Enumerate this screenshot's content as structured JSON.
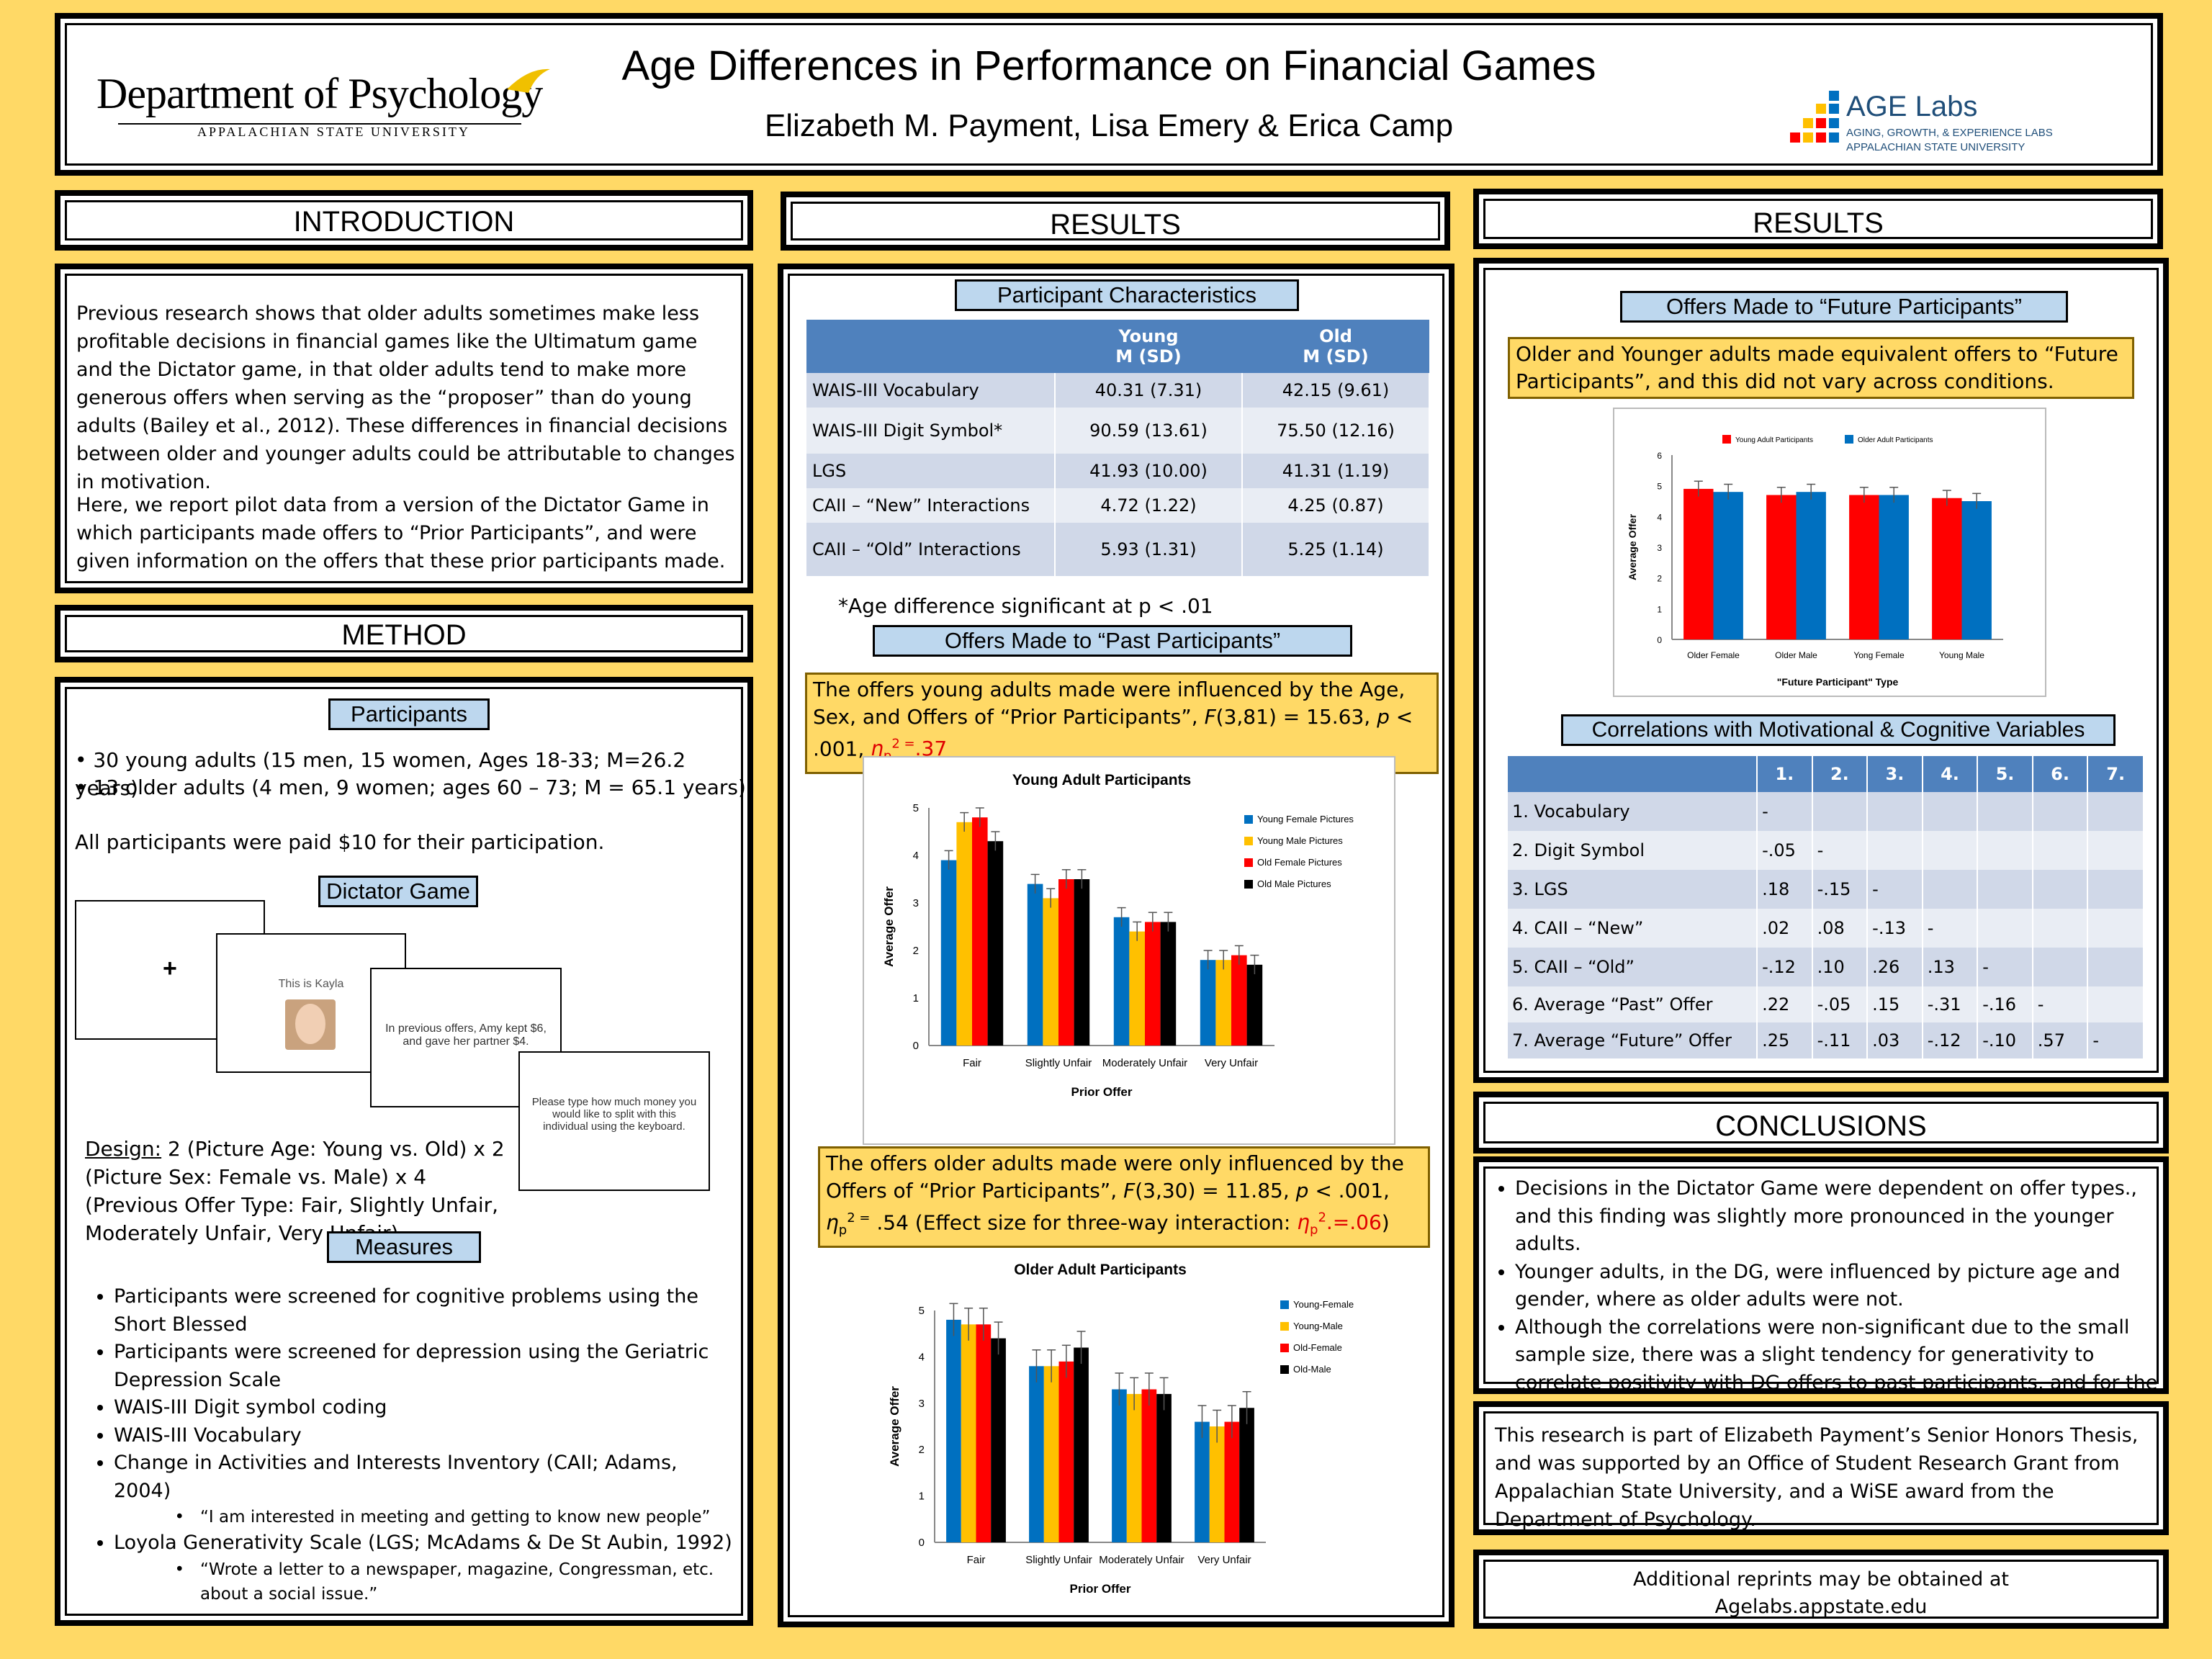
{
  "header": {
    "dept": "Department of Psychology",
    "univ": "APPALACHIAN STATE UNIVERSITY",
    "title": "Age Differences in Performance on Financial Games",
    "authors": "Elizabeth M. Payment, Lisa Emery & Erica Camp",
    "lab": "AGE Labs",
    "lab_sub1": "AGING, GROWTH, & EXPERIENCE LABS",
    "lab_sub2": "APPALACHIAN STATE UNIVERSITY"
  },
  "intro": {
    "heading": "INTRODUCTION",
    "p1": "Previous research shows that older adults sometimes make less profitable decisions in financial games like the Ultimatum game and the Dictator game, in that older adults tend to make more generous offers when serving as the “proposer” than do young adults (Bailey et al., 2012). These differences in financial decisions between older and younger adults could be attributable to changes in motivation.",
    "p2": "Here, we report pilot data from a version of the Dictator Game in which participants made offers to “Prior Participants”, and were given information on the offers that these prior participants made."
  },
  "method": {
    "heading": "METHOD",
    "participants_label": "Participants",
    "b1": "• 30 young adults (15 men, 15 women, Ages 18-33; M=26.2 years)",
    "b2": "• 13 older adults (4 men, 9 women; ages 60 – 73; M = 65.1 years)",
    "paid": "All participants were paid $10 for their participation.",
    "dg_label": "Dictator Game",
    "slide_plus": "+",
    "slide2": "This is Kayla",
    "slide3": "In previous offers, Amy kept $6, and gave her partner $4.",
    "slide4": "Please type how much money you would like to split with this individual using the keyboard.",
    "design_u": "Design:",
    "design": " 2 (Picture Age: Young vs. Old) x 2 (Picture Sex: Female vs. Male) x 4 (Previous Offer Type: Fair, Slightly Unfair, Moderately Unfair, Very Unfair)",
    "measures_label": "Measures",
    "m1": "Participants were screened for cognitive problems using the Short Blessed",
    "m2": "Participants were screened for depression using the Geriatric Depression Scale",
    "m3": "WAIS-III Digit symbol coding",
    "m4": "WAIS-III Vocabulary",
    "m5": "Change in Activities and Interests Inventory (CAII; Adams, 2004)",
    "m5a": "“I am interested in meeting and getting to know new people”",
    "m6": "Loyola Generativity Scale (LGS; McAdams & De St Aubin, 1992)",
    "m6a": "“Wrote a letter to a newspaper, magazine, Congressman, etc. about a social issue.”"
  },
  "results1": {
    "heading": "RESULTS",
    "pc_label": "Participant Characteristics",
    "cols": [
      "",
      "Young\nM (SD)",
      "Old\nM (SD)"
    ],
    "rows": [
      [
        "WAIS-III Vocabulary",
        "40.31 (7.31)",
        "42.15 (9.61)"
      ],
      [
        "WAIS-III Digit Symbol*",
        "90.59 (13.61)",
        "75.50 (12.16)"
      ],
      [
        "LGS",
        "41.93 (10.00)",
        "41.31 (1.19)"
      ],
      [
        "CAII – “New” Interactions",
        "4.72 (1.22)",
        "4.25 (0.87)"
      ],
      [
        "CAII – “Old” Interactions",
        "5.93 (1.31)",
        "5.25 (1.14)"
      ]
    ],
    "footnote": "*Age difference significant at p < .01",
    "past_label": "Offers Made to  “Past Participants”",
    "note1": "The offers young adults made were influenced by the Age, Sex, and Offers of “Prior Participants”, F(3,81) = 15.63, p < .001, ηp² = .37",
    "note2": "The offers older adults made were only influenced by the Offers of “Prior Participants”, F(3,30) = 11.85, p < .001, ηp² = .54 (Effect size for three-way interaction: ηp² = .06)"
  },
  "results2": {
    "heading": "RESULTS",
    "future_label": "Offers Made to  “Future Participants”",
    "note3": "Older and Younger adults made equivalent offers to “Future Participants”, and this did not vary across conditions.",
    "corr_label": "Correlations with Motivational & Cognitive Variables",
    "corr_cols": [
      "",
      "1.",
      "2.",
      "3.",
      "4.",
      "5.",
      "6.",
      "7."
    ],
    "corr_rows": [
      [
        "1.    Vocabulary",
        "-",
        "",
        "",
        "",
        "",
        "",
        ""
      ],
      [
        "2.    Digit Symbol",
        "-.05",
        "-",
        "",
        "",
        "",
        "",
        ""
      ],
      [
        "3.    LGS",
        ".18",
        "-.15",
        "-",
        "",
        "",
        "",
        ""
      ],
      [
        "4.    CAII – “New”",
        ".02",
        ".08",
        "-.13",
        "-",
        "",
        "",
        ""
      ],
      [
        "5.    CAII – “Old”",
        "-.12",
        ".10",
        ".26",
        ".13",
        "-",
        "",
        ""
      ],
      [
        "6.   Average  “Past” Offer",
        ".22",
        "-.05",
        ".15",
        "-.31",
        "-.16",
        "-",
        ""
      ],
      [
        "7.   Average “Future” Offer",
        ".25",
        "-.11",
        ".03",
        "-.12",
        "-.10",
        ".57",
        "-"
      ]
    ]
  },
  "conclusions": {
    "heading": "CONCLUSIONS",
    "c1": "Decisions in the Dictator Game were dependent on offer types., and this finding was  slightly more pronounced in the younger adults.",
    "c2": "Younger adults, in the DG, were influenced by picture age and gender, where as older adults were not.",
    "c3": "Although the correlations were non-significant due to the small sample size, there was a slight tendency for generativity to correlate positivity with DG offers to past participants, and for the CAII to correlate negatively with DG offers.",
    "ack": "This research  is part of Elizabeth Payment’s Senior Honors Thesis, and was supported by an Office of Student Research Grant  from Appalachian State University, and a WiSE award from the Department of Psychology.",
    "reprint1": "Additional reprints may be obtained at",
    "reprint2": "Agelabs.appstate.edu"
  },
  "chart_data": [
    {
      "type": "bar",
      "title": "Young Adult Participants",
      "xlabel": "Prior Offer",
      "ylabel": "Average Offer",
      "ylim": [
        0,
        5
      ],
      "categories": [
        "Fair",
        "Slightly Unfair",
        "Moderately Unfair",
        "Very Unfair"
      ],
      "series": [
        {
          "name": "Young Female Pictures",
          "values": [
            3.9,
            3.4,
            2.7,
            1.8
          ],
          "color": "#0070c0"
        },
        {
          "name": "Young Male Pictures",
          "values": [
            4.7,
            3.1,
            2.4,
            1.8
          ],
          "color": "#ffc000"
        },
        {
          "name": "Old Female Pictures",
          "values": [
            4.8,
            3.5,
            2.6,
            1.9
          ],
          "color": "#ff0000"
        },
        {
          "name": "Old Male Pictures",
          "values": [
            4.3,
            3.5,
            2.6,
            1.7
          ],
          "color": "#000000"
        }
      ],
      "err": 0.2
    },
    {
      "type": "bar",
      "title": "Older Adult Participants",
      "xlabel": "Prior Offer",
      "ylabel": "Average Offer",
      "ylim": [
        0,
        5
      ],
      "categories": [
        "Fair",
        "Slightly Unfair",
        "Moderately Unfair",
        "Very Unfair"
      ],
      "series": [
        {
          "name": "Young-Female",
          "values": [
            4.8,
            3.8,
            3.3,
            2.6
          ],
          "color": "#0070c0"
        },
        {
          "name": "Young-Male",
          "values": [
            4.7,
            3.8,
            3.2,
            2.5
          ],
          "color": "#ffc000"
        },
        {
          "name": "Old-Female",
          "values": [
            4.7,
            3.9,
            3.3,
            2.6
          ],
          "color": "#ff0000"
        },
        {
          "name": "Old-Male",
          "values": [
            4.4,
            4.2,
            3.2,
            2.9
          ],
          "color": "#000000"
        }
      ],
      "err": 0.35
    },
    {
      "type": "bar",
      "title": "",
      "xlabel": "\"Future Participant\" Type",
      "ylabel": "Average Offer",
      "ylim": [
        0,
        6
      ],
      "categories": [
        "Older Female",
        "Older Male",
        "Yong Female",
        "Young Male"
      ],
      "series": [
        {
          "name": "Young Adult Participants",
          "values": [
            4.9,
            4.7,
            4.7,
            4.6
          ],
          "color": "#ff0000"
        },
        {
          "name": "Older Adult Participants",
          "values": [
            4.8,
            4.8,
            4.7,
            4.5
          ],
          "color": "#0070c0"
        }
      ],
      "err": 0.25
    }
  ]
}
